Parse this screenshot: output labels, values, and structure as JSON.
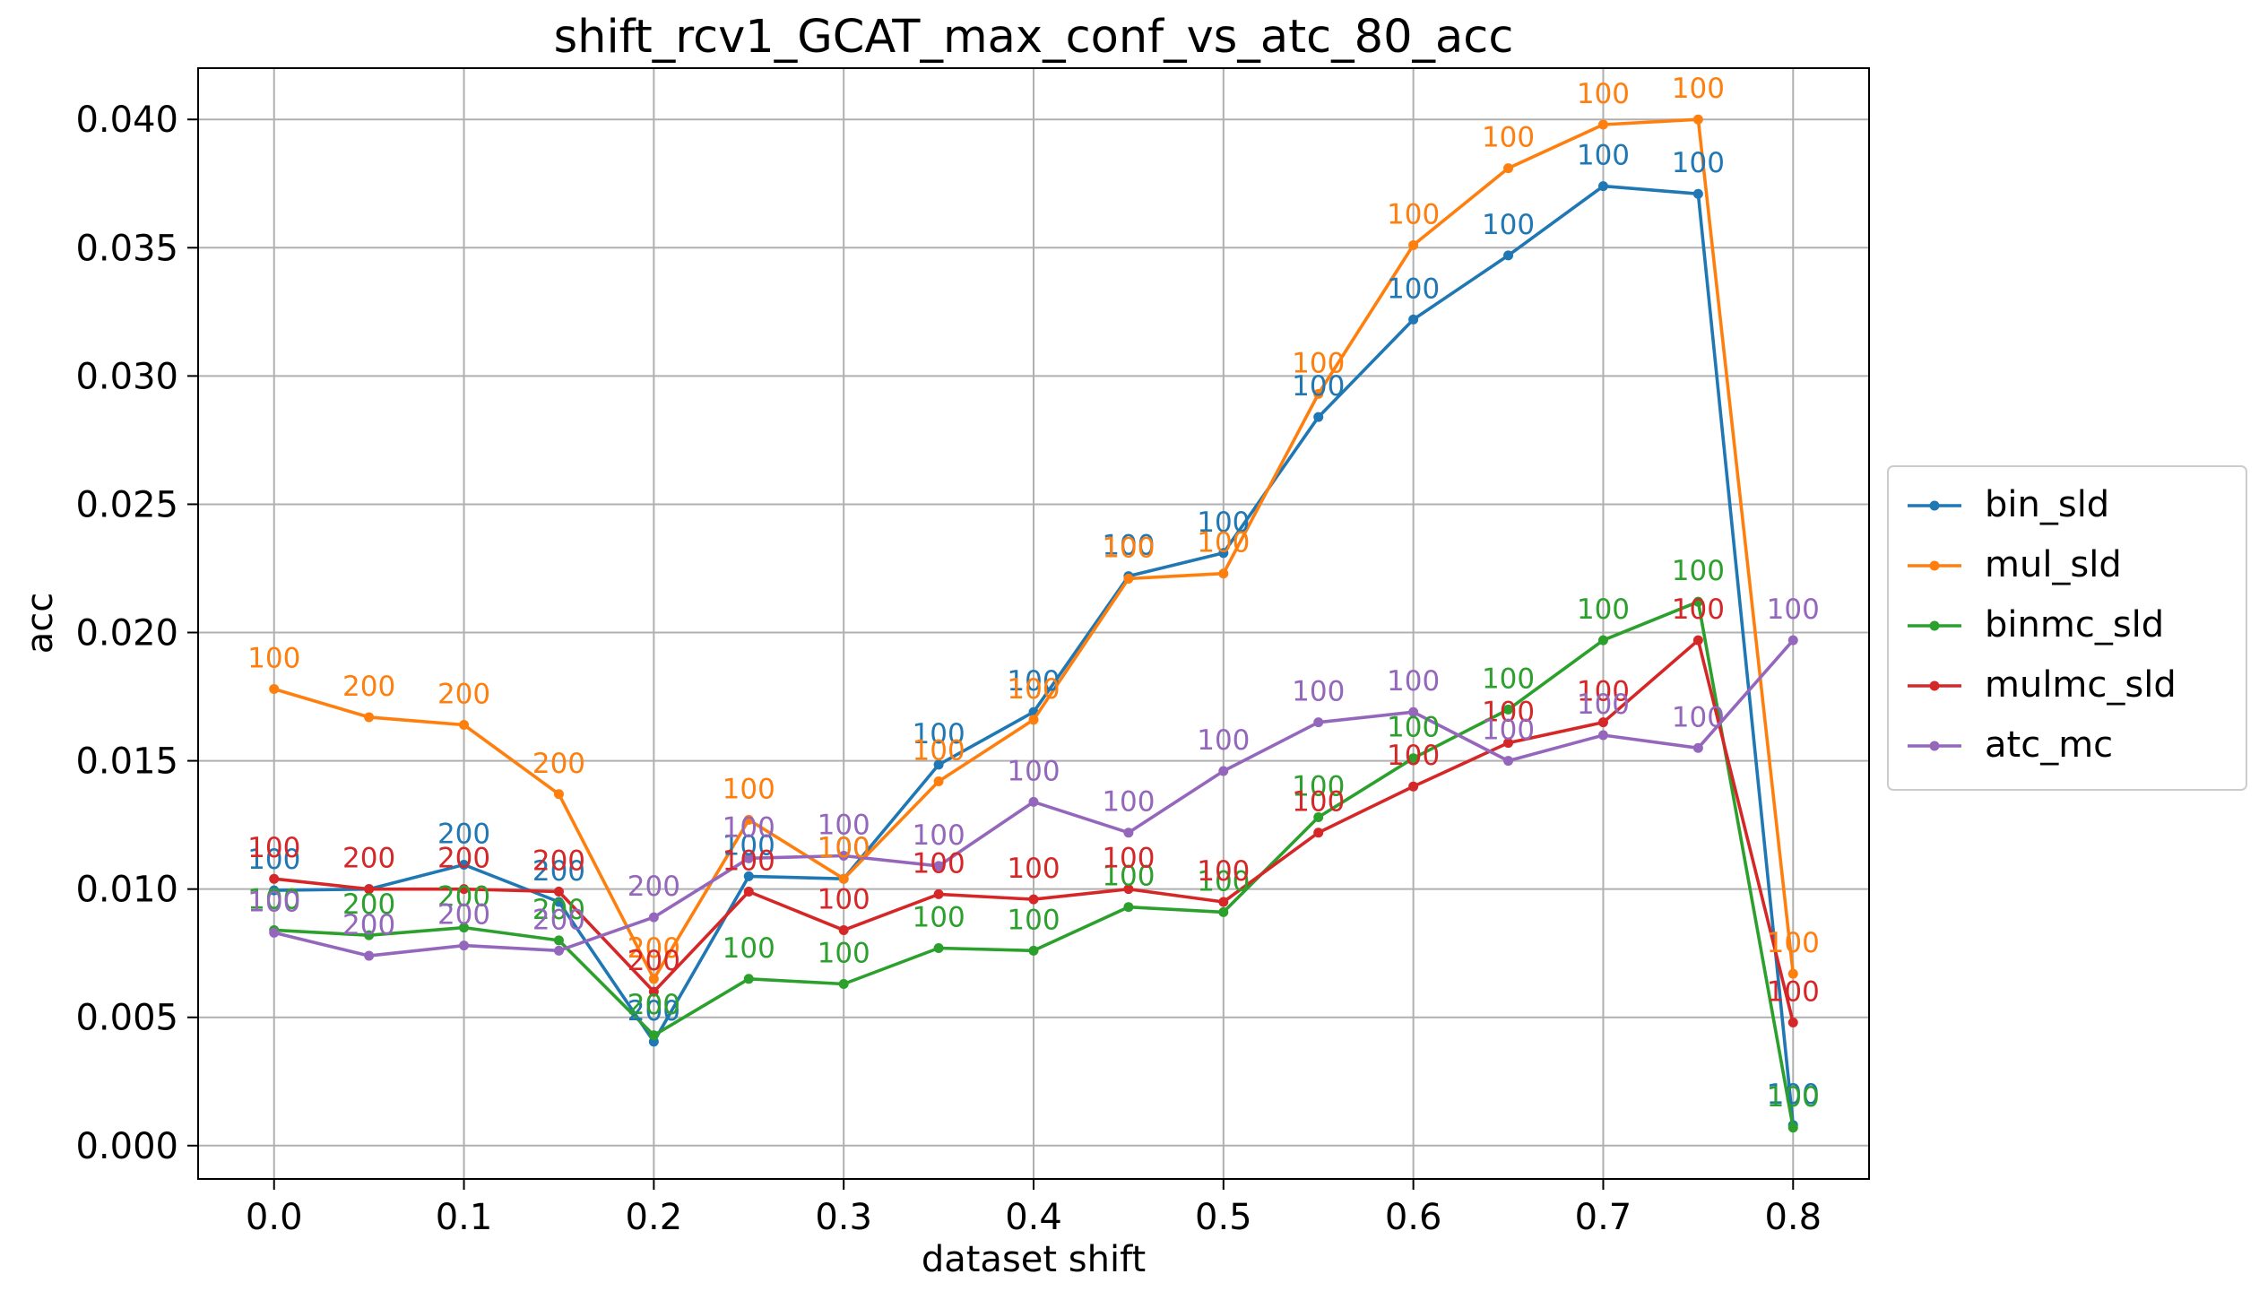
{
  "chart_data": {
    "type": "line",
    "title": "shift_rcv1_GCAT_max_conf_vs_atc_80_acc",
    "xlabel": "dataset shift",
    "ylabel": "acc",
    "xlim": [
      -0.04,
      0.84
    ],
    "ylim": [
      -0.0013,
      0.042
    ],
    "grid": true,
    "legend_position": "right",
    "xticks": [
      0.0,
      0.1,
      0.2,
      0.3,
      0.4,
      0.5,
      0.6,
      0.7,
      0.8
    ],
    "xtick_labels": [
      "0.0",
      "0.1",
      "0.2",
      "0.3",
      "0.4",
      "0.5",
      "0.6",
      "0.7",
      "0.8"
    ],
    "yticks": [
      0.0,
      0.005,
      0.01,
      0.015,
      0.02,
      0.025,
      0.03,
      0.035,
      0.04
    ],
    "ytick_labels": [
      "0.000",
      "0.005",
      "0.010",
      "0.015",
      "0.020",
      "0.025",
      "0.030",
      "0.035",
      "0.040"
    ],
    "x": [
      0.0,
      0.05,
      0.1,
      0.15,
      0.2,
      0.25,
      0.3,
      0.35,
      0.4,
      0.45,
      0.5,
      0.55,
      0.6,
      0.65,
      0.7,
      0.75,
      0.8
    ],
    "series": [
      {
        "name": "bin_sld",
        "color": "#1f77b4",
        "values": [
          0.00995,
          0.01,
          0.01095,
          0.0095,
          0.00405,
          0.0105,
          0.0104,
          0.01485,
          0.0169,
          0.0222,
          0.0231,
          0.0284,
          0.0322,
          0.0347,
          0.0374,
          0.0371,
          0.0008
        ],
        "labels": [
          "100",
          "",
          "200",
          "200",
          "200",
          "100",
          "100",
          "100",
          "100",
          "100",
          "100",
          "100",
          "100",
          "100",
          "100",
          "100",
          "100"
        ]
      },
      {
        "name": "mul_sld",
        "color": "#ff7f0e",
        "values": [
          0.0178,
          0.0167,
          0.0164,
          0.0137,
          0.0065,
          0.0127,
          0.0104,
          0.0142,
          0.0166,
          0.0221,
          0.0223,
          0.0293,
          0.0351,
          0.0381,
          0.0398,
          0.04,
          0.0067
        ],
        "labels": [
          "100",
          "200",
          "200",
          "200",
          "200",
          "100",
          "100",
          "100",
          "100",
          "100",
          "100",
          "100",
          "100",
          "100",
          "100",
          "100",
          "100"
        ]
      },
      {
        "name": "binmc_sld",
        "color": "#2ca02c",
        "values": [
          0.0084,
          0.0082,
          0.0085,
          0.008,
          0.0043,
          0.0065,
          0.0063,
          0.0077,
          0.0076,
          0.0093,
          0.0091,
          0.0128,
          0.0151,
          0.017,
          0.0197,
          0.0212,
          0.0007
        ],
        "labels": [
          "100",
          "200",
          "200",
          "200",
          "200",
          "100",
          "100",
          "100",
          "100",
          "100",
          "100",
          "100",
          "100",
          "100",
          "100",
          "100",
          "100"
        ]
      },
      {
        "name": "mulmc_sld",
        "color": "#d62728",
        "values": [
          0.0104,
          0.01,
          0.01,
          0.0099,
          0.006,
          0.0099,
          0.0084,
          0.0098,
          0.0096,
          0.01,
          0.0095,
          0.0122,
          0.014,
          0.0157,
          0.0165,
          0.0197,
          0.0048
        ],
        "labels": [
          "100",
          "200",
          "200",
          "200",
          "200",
          "100",
          "100",
          "100",
          "100",
          "100",
          "100",
          "100",
          "100",
          "100",
          "100",
          "100",
          "100"
        ]
      },
      {
        "name": "atc_mc",
        "color": "#9467bd",
        "values": [
          0.0083,
          0.0074,
          0.0078,
          0.0076,
          0.0089,
          0.0112,
          0.0113,
          0.0109,
          0.0134,
          0.0122,
          0.0146,
          0.0165,
          0.0169,
          0.015,
          0.016,
          0.0155,
          0.0197
        ],
        "labels": [
          "100",
          "200",
          "200",
          "200",
          "200",
          "100",
          "100",
          "100",
          "100",
          "100",
          "100",
          "100",
          "100",
          "100",
          "100",
          "100",
          "100"
        ]
      }
    ]
  }
}
